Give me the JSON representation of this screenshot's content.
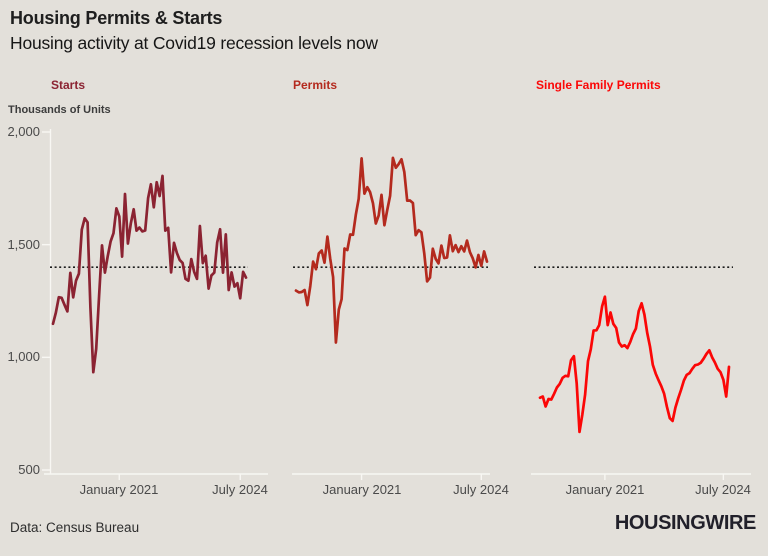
{
  "header": {
    "title": "Housing Permits & Starts",
    "subtitle": "Housing activity at Covid19 recession levels now"
  },
  "axis": {
    "unit_label": "Thousands of Units",
    "y_ticks": [
      "2,000",
      "1,500",
      "1,000",
      "500"
    ],
    "y_tick_values": [
      2000,
      1500,
      1000,
      500
    ],
    "x_tick_labels": [
      "January 2021",
      "July 2024"
    ]
  },
  "footer": {
    "source": "Data: Census Bureau",
    "brand": "HOUSINGWIRE"
  },
  "colors": {
    "background": "#e3e0da",
    "starts_line": "#8b2332",
    "permits_line": "#b42a1e",
    "single_family_line": "#fb0707",
    "reference_line": "#1c1c1c",
    "axis_line": "#f8f7f3",
    "title_text": "#1e1e1e",
    "label_text": "#4a4a4a",
    "brand_text": "#21202a"
  },
  "chart_data": {
    "type": "line",
    "title": "Housing Permits & Starts",
    "subtitle": "Housing activity at Covid19 recession levels now",
    "ylabel": "Thousands of Units",
    "ylim": [
      500,
      2000
    ],
    "grid": false,
    "legend_position": "panel-headers",
    "x_start_month": "2019-02",
    "x_end_month": "2024-09",
    "x_tick_labels": [
      "January 2021",
      "July 2024"
    ],
    "x_tick_indices": [
      23,
      65
    ],
    "reference_line_value": 1400,
    "reference_line_style": "black-dotted",
    "panels": [
      {
        "label": "Starts",
        "color": "#8b2332",
        "values": [
          1149,
          1199,
          1267,
          1264,
          1233,
          1204,
          1375,
          1266,
          1340,
          1371,
          1567,
          1617,
          1599,
          1222,
          934,
          1038,
          1273,
          1497,
          1376,
          1448,
          1514,
          1551,
          1661,
          1625,
          1447,
          1725,
          1505,
          1594,
          1657,
          1562,
          1576,
          1559,
          1563,
          1706,
          1768,
          1666,
          1777,
          1716,
          1805,
          1562,
          1575,
          1377,
          1508,
          1463,
          1432,
          1419,
          1348,
          1340,
          1436,
          1380,
          1348,
          1583,
          1418,
          1451,
          1305,
          1363,
          1376,
          1510,
          1568,
          1376,
          1546,
          1299,
          1377,
          1314,
          1329,
          1262,
          1379,
          1354
        ]
      },
      {
        "label": "Permits",
        "color": "#b42a1e",
        "values": [
          1296,
          1288,
          1290,
          1299,
          1232,
          1317,
          1425,
          1391,
          1461,
          1474,
          1420,
          1536,
          1438,
          1356,
          1066,
          1212,
          1258,
          1483,
          1476,
          1545,
          1544,
          1635,
          1704,
          1883,
          1726,
          1755,
          1733,
          1683,
          1594,
          1630,
          1721,
          1586,
          1653,
          1717,
          1885,
          1841,
          1857,
          1879,
          1823,
          1695,
          1696,
          1685,
          1542,
          1564,
          1555,
          1460,
          1337,
          1354,
          1482,
          1437,
          1417,
          1496,
          1441,
          1443,
          1541,
          1471,
          1498,
          1467,
          1493,
          1470,
          1518,
          1467,
          1440,
          1399,
          1454,
          1406,
          1470,
          1425
        ]
      },
      {
        "label": "Single Family Permits",
        "color": "#fb0707",
        "values": [
          821,
          826,
          782,
          815,
          813,
          838,
          866,
          882,
          909,
          918,
          916,
          987,
          1005,
          884,
          669,
          745,
          834,
          983,
          1036,
          1119,
          1120,
          1143,
          1226,
          1269,
          1143,
          1199,
          1149,
          1130,
          1066,
          1048,
          1054,
          1041,
          1069,
          1103,
          1128,
          1205,
          1240,
          1190,
          1109,
          1048,
          967,
          928,
          899,
          872,
          839,
          781,
          730,
          718,
          777,
          818,
          855,
          897,
          922,
          930,
          949,
          965,
          968,
          976,
          994,
          1015,
          1031,
          1000,
          977,
          949,
          934,
          900,
          826,
          958
        ]
      }
    ]
  }
}
